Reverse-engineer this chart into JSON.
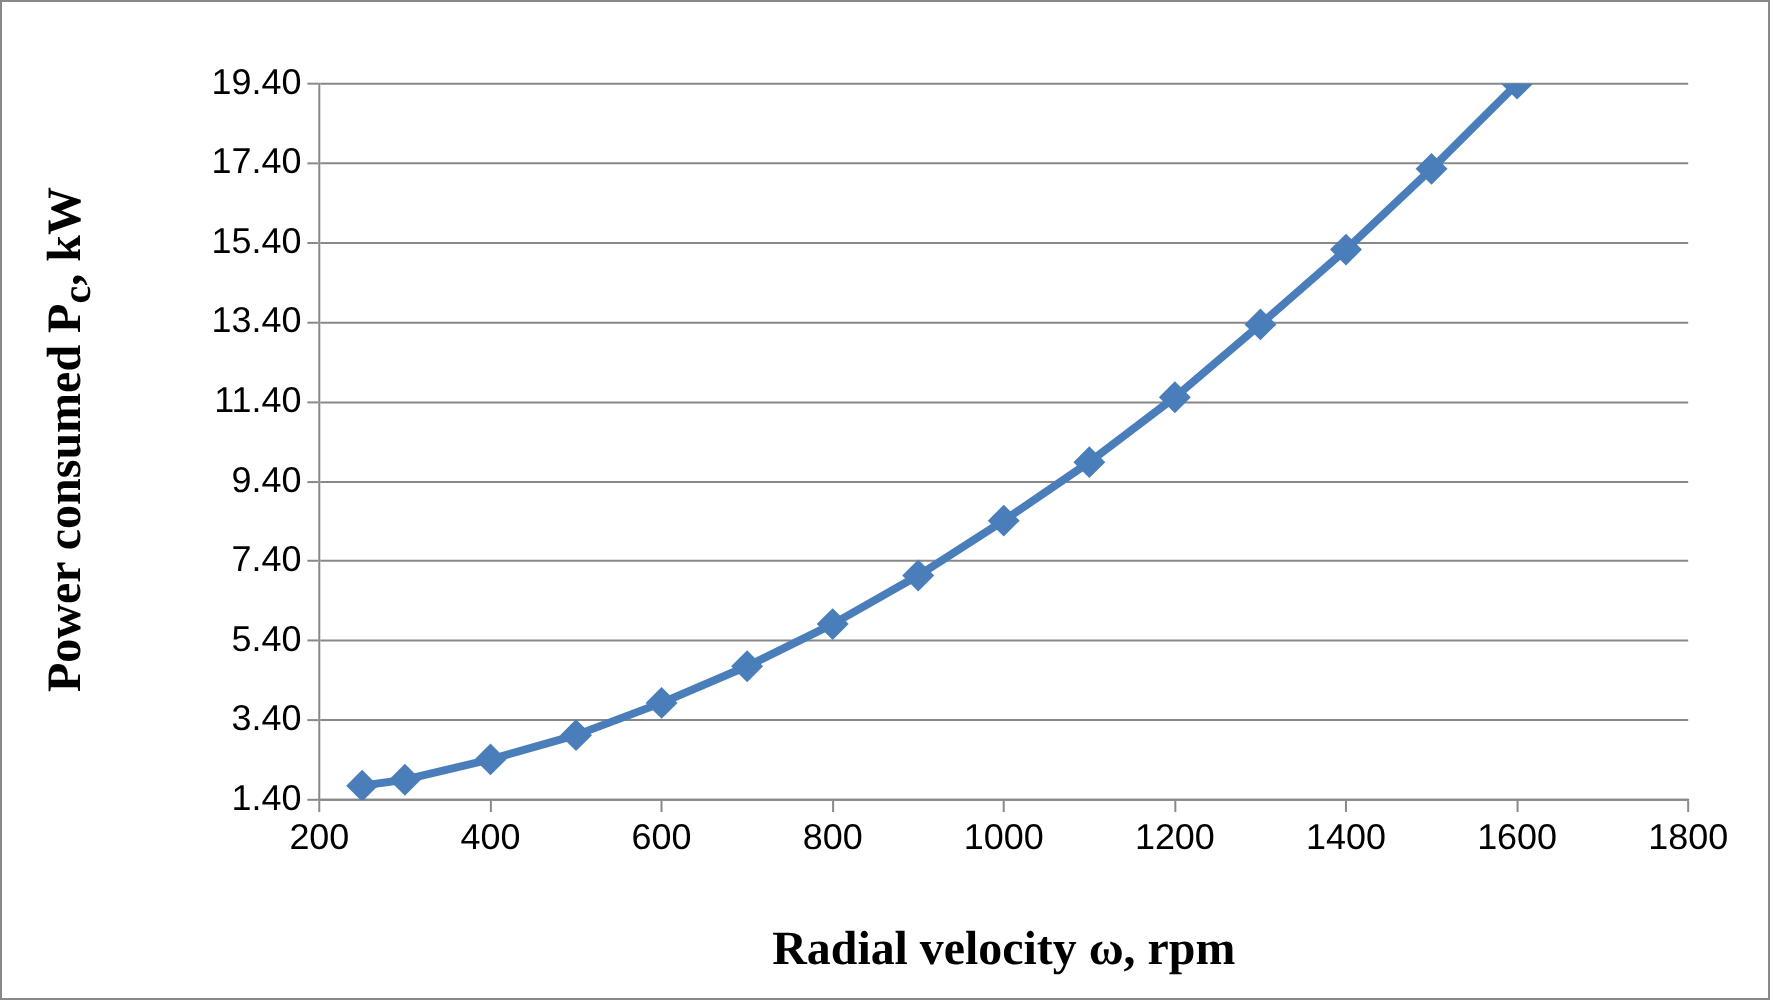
{
  "chart_data": {
    "type": "line",
    "xlabel": "Radial velocity ω, rpm",
    "ylabel": "Power consumed P$_{c}$, kW",
    "x": [
      250,
      300,
      400,
      500,
      600,
      700,
      800,
      900,
      1000,
      1100,
      1200,
      1300,
      1400,
      1500,
      1600
    ],
    "series": [
      {
        "color": "#4a7ebb",
        "values": [
          1.76,
          1.91,
          2.42,
          3.03,
          3.84,
          4.76,
          5.82,
          7.04,
          8.42,
          9.89,
          11.52,
          13.35,
          15.23,
          17.26,
          19.4
        ]
      }
    ],
    "xlim": [
      200,
      1800
    ],
    "xticks": [
      200,
      400,
      600,
      800,
      1000,
      1200,
      1400,
      1600,
      1800
    ],
    "ylim": [
      1.4,
      19.4
    ],
    "yticks": [
      {
        "value": 1.4,
        "label": "1.40"
      },
      {
        "value": 3.4,
        "label": "3.40"
      },
      {
        "value": 5.4,
        "label": "5.40"
      },
      {
        "value": 7.4,
        "label": "7.40"
      },
      {
        "value": 9.4,
        "label": "9.40"
      },
      {
        "value": 11.4,
        "label": "11.40"
      },
      {
        "value": 13.4,
        "label": "13.40"
      },
      {
        "value": 15.4,
        "label": "15.40"
      },
      {
        "value": 17.4,
        "label": "17.40"
      },
      {
        "value": 19.4,
        "label": "19.40"
      }
    ],
    "grid": "y",
    "marker": "diamond",
    "line_style": "solid",
    "legend": false
  }
}
